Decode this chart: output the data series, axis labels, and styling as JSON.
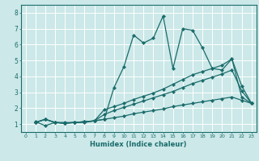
{
  "xlabel": "Humidex (Indice chaleur)",
  "bg_color": "#cce8e8",
  "grid_color": "#ffffff",
  "line_color": "#1a6b6b",
  "xlim": [
    -0.5,
    23.5
  ],
  "ylim": [
    0.5,
    8.5
  ],
  "xticks": [
    0,
    1,
    2,
    3,
    4,
    5,
    6,
    7,
    8,
    9,
    10,
    11,
    12,
    13,
    14,
    15,
    16,
    17,
    18,
    19,
    20,
    21,
    22,
    23
  ],
  "yticks": [
    1,
    2,
    3,
    4,
    5,
    6,
    7,
    8
  ],
  "series": [
    {
      "x": [
        1,
        2,
        3,
        4,
        5,
        6,
        7,
        8,
        9,
        10,
        11,
        12,
        13,
        14,
        15,
        16,
        17,
        18,
        19,
        20,
        21,
        22,
        23
      ],
      "y": [
        1.15,
        0.9,
        1.1,
        1.1,
        1.1,
        1.1,
        1.2,
        1.3,
        3.3,
        4.6,
        6.6,
        6.1,
        6.4,
        7.8,
        4.5,
        7.0,
        6.9,
        5.8,
        4.5,
        4.4,
        5.1,
        2.7,
        2.3
      ]
    },
    {
      "x": [
        1,
        2,
        3,
        4,
        5,
        6,
        7,
        8,
        9,
        10,
        11,
        12,
        13,
        14,
        15,
        16,
        17,
        18,
        19,
        20,
        21,
        22,
        23
      ],
      "y": [
        1.1,
        1.3,
        1.1,
        1.05,
        1.1,
        1.15,
        1.2,
        1.9,
        2.1,
        2.3,
        2.55,
        2.75,
        2.95,
        3.2,
        3.5,
        3.8,
        4.1,
        4.3,
        4.5,
        4.7,
        5.1,
        3.4,
        2.3
      ]
    },
    {
      "x": [
        1,
        2,
        3,
        4,
        5,
        6,
        7,
        8,
        9,
        10,
        11,
        12,
        13,
        14,
        15,
        16,
        17,
        18,
        19,
        20,
        21,
        22,
        23
      ],
      "y": [
        1.1,
        1.3,
        1.1,
        1.05,
        1.1,
        1.15,
        1.2,
        1.6,
        1.85,
        2.05,
        2.25,
        2.45,
        2.65,
        2.85,
        3.05,
        3.3,
        3.55,
        3.75,
        3.95,
        4.15,
        4.4,
        3.1,
        2.3
      ]
    },
    {
      "x": [
        1,
        2,
        3,
        4,
        5,
        6,
        7,
        8,
        9,
        10,
        11,
        12,
        13,
        14,
        15,
        16,
        17,
        18,
        19,
        20,
        21,
        22,
        23
      ],
      "y": [
        1.1,
        1.3,
        1.1,
        1.05,
        1.1,
        1.15,
        1.2,
        1.3,
        1.4,
        1.5,
        1.65,
        1.75,
        1.85,
        1.95,
        2.1,
        2.2,
        2.3,
        2.4,
        2.5,
        2.6,
        2.7,
        2.5,
        2.3
      ]
    }
  ]
}
